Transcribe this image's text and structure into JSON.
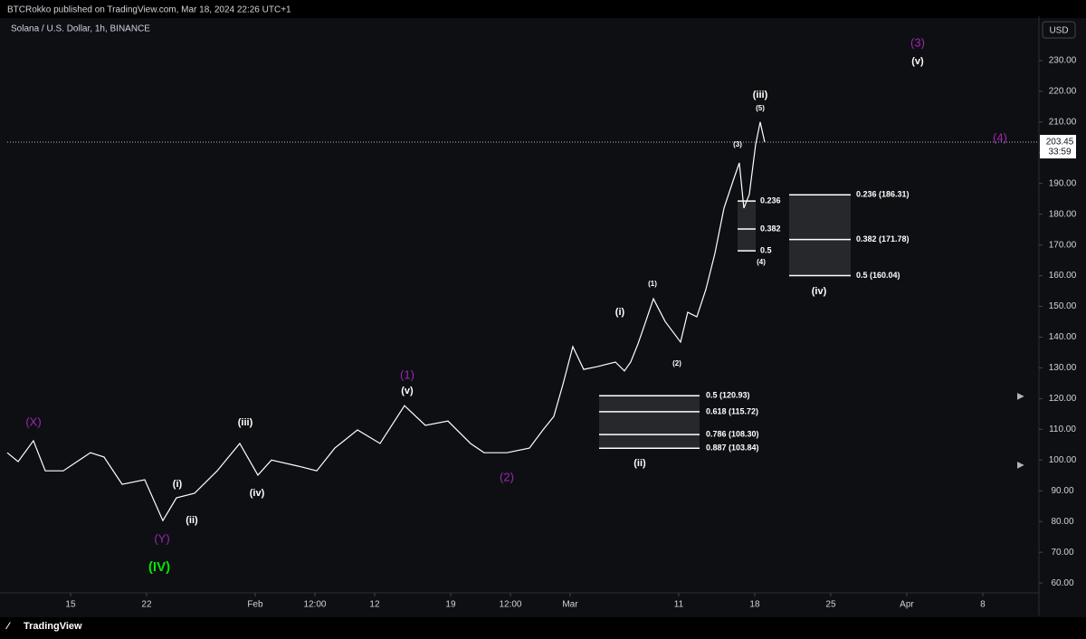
{
  "header": {
    "publisher": "BTCRokko published on TradingView.com, Mar 18, 2024 22:26 UTC+1"
  },
  "chart_data": {
    "type": "line",
    "title": "Solana / U.S. Dollar, 1h, BINANCE",
    "currency": "USD",
    "color": "#ffffff",
    "x": [
      9.17,
      10.17,
      11.58,
      12.67,
      14.33,
      16.83,
      18.08,
      19.75,
      21.83,
      23.5,
      24.75,
      26.42,
      28.5,
      30.58,
      32.25,
      33.5,
      36,
      37.67,
      39.33,
      41.42,
      43.5,
      45.75,
      47.67,
      49.75,
      51.83,
      53.08,
      55.17,
      57.25,
      58.5,
      59.5,
      60.33,
      61.25,
      62.25,
      63.5,
      65.17,
      66,
      66.58,
      67.25,
      67.83,
      68.67,
      69.75,
      71.17,
      71.83,
      72.67,
      73.5,
      74.33,
      75.17,
      76,
      76.58,
      77,
      77.5,
      78.08,
      78.5,
      78.92
    ],
    "values": [
      102.4,
      99.5,
      106.3,
      96.5,
      96.5,
      102.4,
      101,
      92.1,
      93.6,
      80.3,
      87.7,
      89.2,
      96.5,
      105.4,
      95.1,
      100,
      98,
      96.5,
      103.9,
      109.8,
      105.4,
      117.7,
      111.3,
      112.7,
      105.4,
      102.4,
      102.4,
      103.9,
      109.8,
      114.2,
      124.5,
      136.9,
      129.5,
      130.4,
      131.9,
      129,
      131.9,
      137.8,
      143.7,
      152.5,
      145.1,
      138.4,
      148.1,
      146.6,
      155.5,
      167.2,
      182,
      190.8,
      196.7,
      182,
      186.4,
      202.6,
      210,
      203.45
    ],
    "last_price": 203.45,
    "countdown": "33:59",
    "xlim": [
      9.17,
      104.17
    ],
    "xticks": [
      {
        "value": 15,
        "label": "15"
      },
      {
        "value": 22,
        "label": "22"
      },
      {
        "value": 32,
        "label": "Feb"
      },
      {
        "value": 37.5,
        "label": "12:00"
      },
      {
        "value": 43,
        "label": "12"
      },
      {
        "value": 50,
        "label": "19"
      },
      {
        "value": 55.5,
        "label": "12:00"
      },
      {
        "value": 61,
        "label": "Mar"
      },
      {
        "value": 71,
        "label": "11"
      },
      {
        "value": 78,
        "label": "18"
      },
      {
        "value": 85,
        "label": "25"
      },
      {
        "value": 92,
        "label": "Apr"
      },
      {
        "value": 99,
        "label": "8"
      }
    ],
    "ylim": [
      56.8,
      244.4
    ],
    "yticks": [
      {
        "value": 60,
        "label": "60.00"
      },
      {
        "value": 70,
        "label": "70.00"
      },
      {
        "value": 80,
        "label": "80.00"
      },
      {
        "value": 90,
        "label": "90.00"
      },
      {
        "value": 100,
        "label": "100.00"
      },
      {
        "value": 110,
        "label": "110.00"
      },
      {
        "value": 120,
        "label": "120.00"
      },
      {
        "value": 130,
        "label": "130.00"
      },
      {
        "value": 140,
        "label": "140.00"
      },
      {
        "value": 150,
        "label": "150.00"
      },
      {
        "value": 160,
        "label": "160.00"
      },
      {
        "value": 170,
        "label": "170.00"
      },
      {
        "value": 180,
        "label": "180.00"
      },
      {
        "value": 190,
        "label": "190.00"
      },
      {
        "value": 200,
        "label": "200.00"
      },
      {
        "value": 210,
        "label": "210.00"
      },
      {
        "value": 220,
        "label": "220.00"
      },
      {
        "value": 230,
        "label": "230.00"
      }
    ],
    "fib_levels": [
      {
        "labels": [
          "0.5 (120.93)",
          "0.618 (115.72)",
          "0.786 (108.30)",
          "0.887 (103.84)"
        ],
        "values": [
          120.93,
          115.72,
          108.3,
          103.84
        ]
      },
      {
        "labels": [
          "0.236",
          "0.382",
          "0.5"
        ],
        "values": [
          184.3,
          175.2,
          168.1
        ]
      },
      {
        "labels": [
          "0.236 (186.31)",
          "0.382 (171.78)",
          "0.5 (160.04)"
        ],
        "values": [
          186.31,
          171.78,
          160.04
        ]
      }
    ],
    "annotations": [
      {
        "text": "(X)",
        "color": "#9c27b0"
      },
      {
        "text": "(Y)",
        "color": "#9c27b0"
      },
      {
        "text": "(IV)",
        "color": "#00e600"
      },
      {
        "text": "(i)",
        "color": "#ffffff"
      },
      {
        "text": "(ii)",
        "color": "#ffffff"
      },
      {
        "text": "(iii)",
        "color": "#ffffff"
      },
      {
        "text": "(iv)",
        "color": "#ffffff"
      },
      {
        "text": "(1)",
        "color": "#9c27b0"
      },
      {
        "text": "(v)",
        "color": "#ffffff"
      },
      {
        "text": "(2)",
        "color": "#9c27b0"
      },
      {
        "text": "(i)",
        "color": "#ffffff"
      },
      {
        "text": "(1)",
        "color": "#ffffff"
      },
      {
        "text": "(2)",
        "color": "#ffffff"
      },
      {
        "text": "(ii)",
        "color": "#ffffff"
      },
      {
        "text": "(iii)",
        "color": "#ffffff"
      },
      {
        "text": "(5)",
        "color": "#ffffff"
      },
      {
        "text": "(3)",
        "color": "#ffffff"
      },
      {
        "text": "(4)",
        "color": "#ffffff"
      },
      {
        "text": "(iv)",
        "color": "#ffffff"
      },
      {
        "text": "(3)",
        "color": "#9c27b0"
      },
      {
        "text": "(v)",
        "color": "#ffffff"
      },
      {
        "text": "(4)",
        "color": "#9c27b0"
      }
    ]
  },
  "footer": {
    "brand": "TradingView"
  }
}
